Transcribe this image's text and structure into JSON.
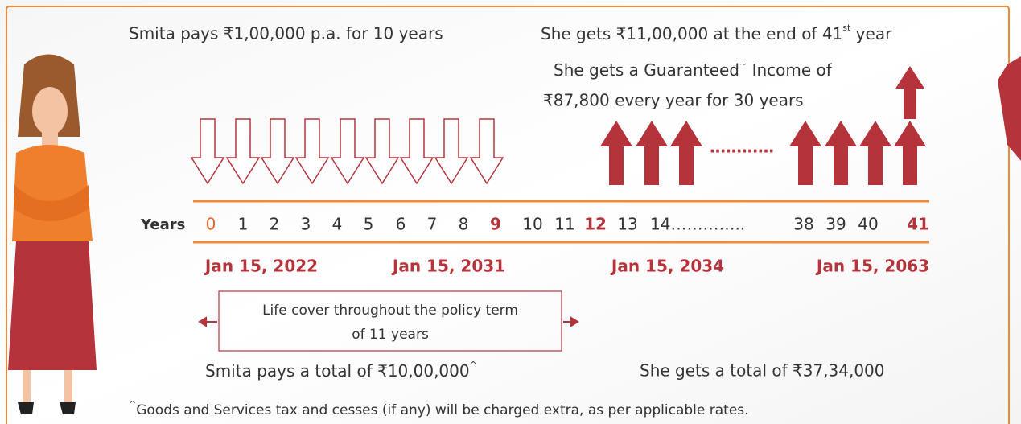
{
  "top": {
    "pays": "Smita pays ₹1,00,000 p.a. for 10 years",
    "gets_main": "She gets ₹11,00,000 at the end of 41",
    "gets_sup": "st",
    "gets_end": " year"
  },
  "income": {
    "line1_main": "She gets a Guaranteed",
    "line1_sup": "~",
    "line1_end": " Income of",
    "line2": "₹87,800 every year for 30 years",
    "dots": "…………"
  },
  "timeline": {
    "label": "Years",
    "years": [
      "0",
      "1",
      "2",
      "3",
      "4",
      "5",
      "6",
      "7",
      "8",
      "9",
      "10",
      "11",
      "12",
      "13",
      "14…………..",
      "38",
      "39",
      "40",
      "41"
    ],
    "dates": [
      "Jan 15, 2022",
      "Jan 15, 2031",
      "Jan 15, 2034",
      "Jan 15, 2063"
    ]
  },
  "cover": {
    "line1": "Life cover throughout the policy term",
    "line2": "of 11 years"
  },
  "totals": {
    "pays_main": "Smita pays a total of ₹10,00,000",
    "pays_sup": "^",
    "gets": "She gets a total of ₹37,34,000"
  },
  "footnote": {
    "sup": "^",
    "text": "Goods and Services tax and cesses (if any) will be charged extra, as per applicable rates."
  }
}
